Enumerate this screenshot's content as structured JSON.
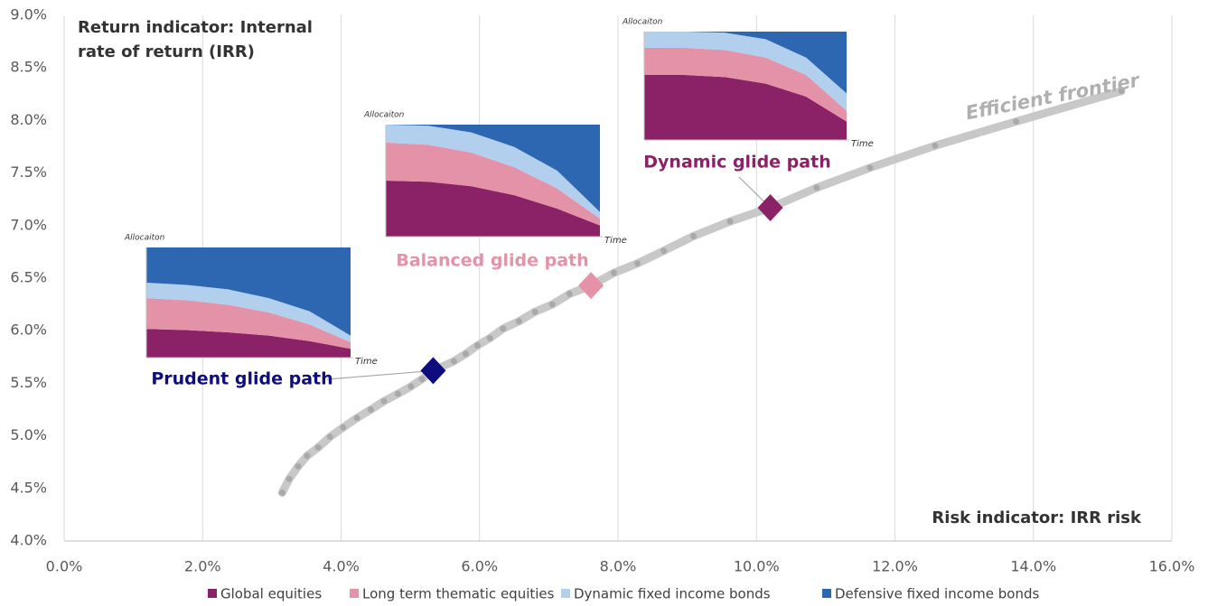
{
  "chart_data": [
    {
      "type": "line",
      "ylabel": "Return indicator: Internal rate of return (IRR)",
      "xlabel": "Risk indicator: IRR risk",
      "xlim": [
        0,
        16
      ],
      "xticks": [
        {
          "value": 0,
          "label": "0.0%"
        },
        {
          "value": 2,
          "label": "2.0%"
        },
        {
          "value": 4,
          "label": "4.0%"
        },
        {
          "value": 6,
          "label": "6.0%"
        },
        {
          "value": 8,
          "label": "8.0%"
        },
        {
          "value": 10,
          "label": "10.0%"
        },
        {
          "value": 12,
          "label": "12.0%"
        },
        {
          "value": 14,
          "label": "14.0%"
        },
        {
          "value": 16,
          "label": "16.0%"
        }
      ],
      "ylim": [
        4,
        9
      ],
      "yticks": [
        {
          "value": 4,
          "label": "4.0%"
        },
        {
          "value": 4.5,
          "label": "4.5%"
        },
        {
          "value": 5,
          "label": "5.0%"
        },
        {
          "value": 5.5,
          "label": "5.5%"
        },
        {
          "value": 6,
          "label": "6.0%"
        },
        {
          "value": 6.5,
          "label": "6.5%"
        },
        {
          "value": 7,
          "label": "7.0%"
        },
        {
          "value": 7.5,
          "label": "7.5%"
        },
        {
          "value": 8,
          "label": "8.0%"
        },
        {
          "value": 8.5,
          "label": "8.5%"
        },
        {
          "value": 9,
          "label": "9.0%"
        }
      ],
      "grid": true,
      "series": [
        {
          "name": "Efficient frontier",
          "color": "#c8c8c8",
          "x": [
            3.15,
            3.25,
            3.38,
            3.51,
            3.67,
            3.84,
            4.03,
            4.23,
            4.43,
            4.62,
            4.82,
            5.01,
            5.17,
            5.33,
            5.63,
            5.8,
            5.97,
            6.15,
            6.34,
            6.57,
            6.8,
            7.05,
            7.3,
            7.61,
            7.94,
            8.28,
            8.66,
            9.09,
            9.62,
            10.2,
            10.87,
            11.64,
            12.58,
            13.75,
            15.27
          ],
          "values": [
            4.46,
            4.59,
            4.71,
            4.81,
            4.89,
            4.99,
            5.08,
            5.17,
            5.25,
            5.33,
            5.4,
            5.47,
            5.54,
            5.62,
            5.71,
            5.78,
            5.86,
            5.93,
            6.02,
            6.09,
            6.18,
            6.25,
            6.35,
            6.43,
            6.55,
            6.64,
            6.76,
            6.9,
            7.04,
            7.17,
            7.36,
            7.55,
            7.76,
            7.99,
            8.28
          ]
        }
      ],
      "highlights": [
        {
          "label": "Prudent glide path",
          "x": 5.33,
          "y": 5.62,
          "color": "#0d0d80"
        },
        {
          "label": "Balanced glide path",
          "x": 7.61,
          "y": 6.43,
          "color": "#e392a8"
        },
        {
          "label": "Dynamic glide path",
          "x": 10.2,
          "y": 7.17,
          "color": "#8b2166"
        }
      ]
    },
    {
      "type": "stacked-area",
      "ylabel": "Allocaiton",
      "xlabel": "Time",
      "ylim": [
        0,
        100
      ],
      "series": [
        {
          "name": "Global equities",
          "color": "#8b2166",
          "values": [
            26,
            25,
            23,
            20,
            15,
            8
          ]
        },
        {
          "name": "Long term thematic equities",
          "color": "#e392a8",
          "values": [
            28,
            27,
            25,
            21,
            15,
            6
          ]
        },
        {
          "name": "Dynamic fixed income bonds",
          "color": "#b3cfee",
          "values": [
            14,
            14,
            14,
            13,
            12,
            6
          ]
        },
        {
          "name": "Defensive fixed income bonds",
          "color": "#2e67b1",
          "values": [
            32,
            34,
            38,
            46,
            58,
            80
          ]
        }
      ]
    },
    {
      "type": "stacked-area",
      "ylabel": "Allocaiton",
      "xlabel": "Time",
      "ylim": [
        0,
        100
      ],
      "series": [
        {
          "name": "Global equities",
          "color": "#8b2166",
          "values": [
            50,
            49,
            45,
            37,
            25,
            10
          ]
        },
        {
          "name": "Long term thematic equities",
          "color": "#e392a8",
          "values": [
            34,
            33,
            30,
            25,
            18,
            6
          ]
        },
        {
          "name": "Dynamic fixed income bonds",
          "color": "#b3cfee",
          "values": [
            16,
            17,
            18,
            18,
            16,
            6
          ]
        },
        {
          "name": "Defensive fixed income bonds",
          "color": "#2e67b1",
          "values": [
            0,
            1,
            7,
            20,
            41,
            78
          ]
        }
      ]
    },
    {
      "type": "stacked-area",
      "ylabel": "Allocaiton",
      "xlabel": "Time",
      "ylim": [
        0,
        100
      ],
      "series": [
        {
          "name": "Global equities",
          "color": "#8b2166",
          "values": [
            60,
            60,
            58,
            52,
            40,
            17
          ]
        },
        {
          "name": "Long term thematic equities",
          "color": "#e392a8",
          "values": [
            25,
            25,
            25,
            24,
            20,
            10
          ]
        },
        {
          "name": "Dynamic fixed income bonds",
          "color": "#b3cfee",
          "values": [
            15,
            15,
            16,
            17,
            16,
            16
          ]
        },
        {
          "name": "Defensive fixed income bonds",
          "color": "#2e67b1",
          "values": [
            0,
            0,
            1,
            7,
            24,
            57
          ]
        }
      ]
    }
  ]
}
